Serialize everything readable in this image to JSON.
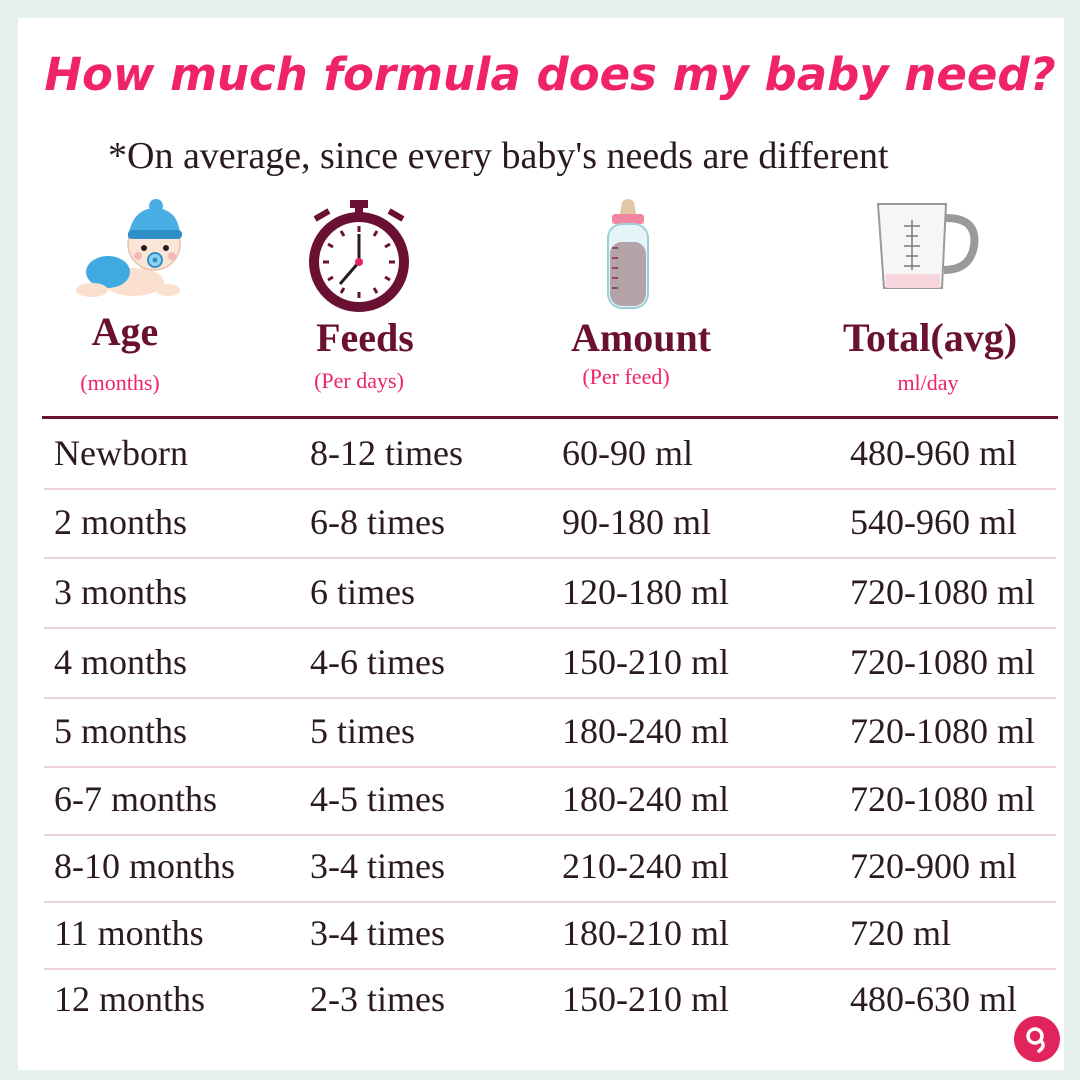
{
  "title": "How much formula does my baby need?",
  "subtitle": "*On average, since every baby's needs are different",
  "colors": {
    "title": "#f0236a",
    "header": "#6a1032",
    "accent": "#f0236a",
    "rule": "#ecd0d8"
  },
  "columns": [
    {
      "label": "Age",
      "sub": "(months)",
      "icon": "baby-icon"
    },
    {
      "label": "Feeds",
      "sub": "(Per days)",
      "icon": "clock-icon"
    },
    {
      "label": "Amount",
      "sub": "(Per feed)",
      "icon": "bottle-icon"
    },
    {
      "label": "Total(avg)",
      "sub": "ml/day",
      "icon": "measuring-cup-icon"
    }
  ],
  "rows": [
    [
      "Newborn",
      "8-12 times",
      "60-90 ml",
      "480-960 ml"
    ],
    [
      "2 months",
      "6-8 times",
      "90-180 ml",
      "540-960 ml"
    ],
    [
      "3 months",
      "6 times",
      "120-180 ml",
      "720-1080 ml"
    ],
    [
      "4 months",
      "4-6 times",
      "150-210 ml",
      "720-1080 ml"
    ],
    [
      "5 months",
      "5 times",
      "180-240 ml",
      "720-1080 ml"
    ],
    [
      "6-7 months",
      "4-5 times",
      "180-240 ml",
      "720-1080 ml"
    ],
    [
      "8-10 months",
      "3-4 times",
      "210-240 ml",
      "720-900 ml"
    ],
    [
      "11 months",
      "3-4 times",
      "180-210 ml",
      "720 ml"
    ],
    [
      "12 months",
      "2-3 times",
      "150-210 ml",
      "480-630 ml"
    ]
  ]
}
